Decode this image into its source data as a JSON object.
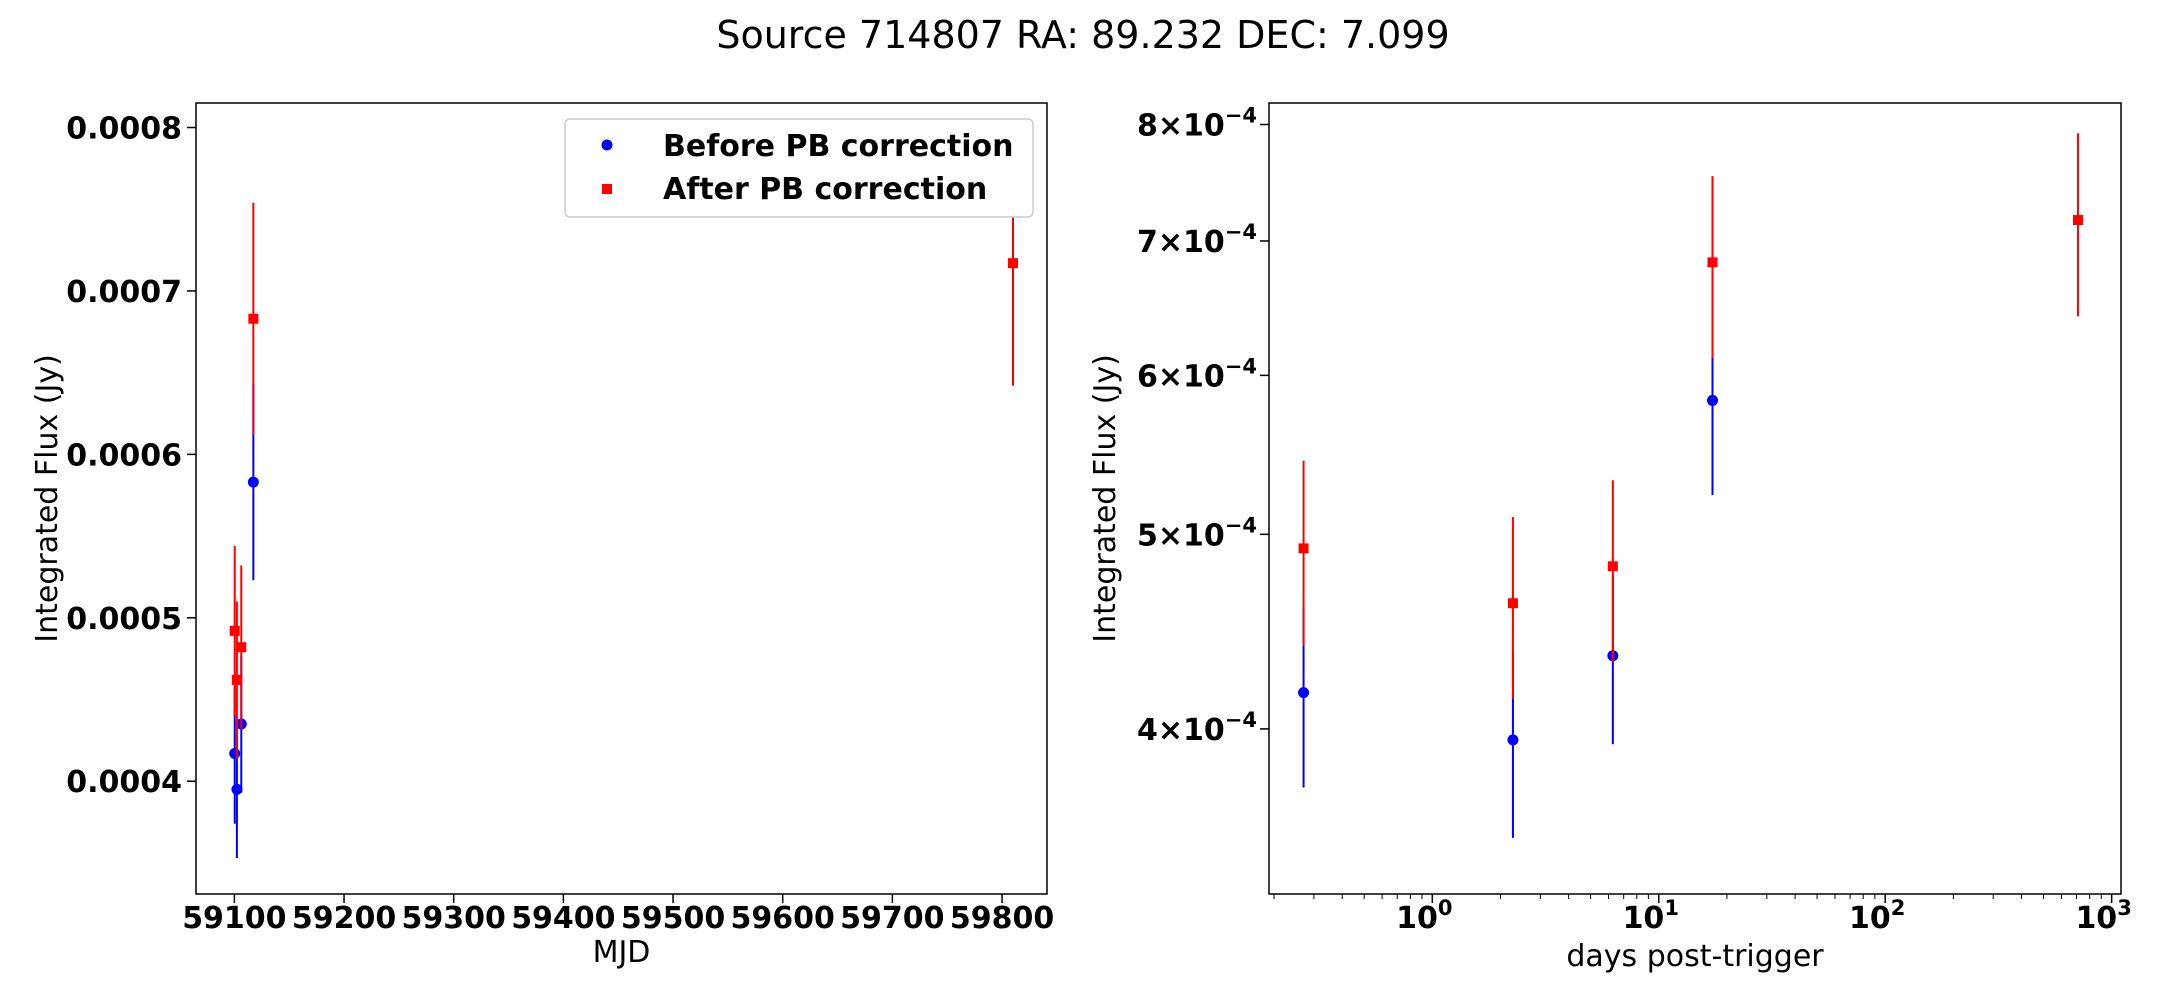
{
  "figure": {
    "title": "Source 714807 RA: 89.232 DEC: 7.099"
  },
  "chart_data": [
    {
      "type": "scatter",
      "panel": "left",
      "xlabel": "MJD",
      "ylabel": "Integrated Flux (Jy)",
      "xscale": "linear",
      "yscale": "linear",
      "xlim": [
        59065,
        59841
      ],
      "ylim": [
        0.000331,
        0.000815
      ],
      "xticks": [
        59100,
        59200,
        59300,
        59400,
        59500,
        59600,
        59700,
        59800
      ],
      "xtick_labels": [
        "59100",
        "59200",
        "59300",
        "59400",
        "59500",
        "59600",
        "59700",
        "59800"
      ],
      "yticks": [
        0.0004,
        0.0005,
        0.0006,
        0.0007,
        0.0008
      ],
      "ytick_labels": [
        "0.0004",
        "0.0005",
        "0.0006",
        "0.0007",
        "0.0008"
      ],
      "grid": false,
      "legend": {
        "placement": "upper-right",
        "entries": [
          {
            "label": "Before PB correction",
            "color": "#0000ff",
            "marker": "circle"
          },
          {
            "label": "After PB correction",
            "color": "#ff0000",
            "marker": "square"
          }
        ]
      },
      "series": [
        {
          "name": "Before PB correction",
          "color": "#0000ff",
          "marker": "circle",
          "points": [
            {
              "x": 59100.3,
              "y": 0.000417,
              "err": 4.3e-05
            },
            {
              "x": 59102.3,
              "y": 0.000395,
              "err": 4.2e-05
            },
            {
              "x": 59106.3,
              "y": 0.000435,
              "err": 4.2e-05
            },
            {
              "x": 59117.3,
              "y": 0.000583,
              "err": 6e-05
            }
          ]
        },
        {
          "name": "After PB correction",
          "color": "#ff0000",
          "marker": "square",
          "points": [
            {
              "x": 59100.3,
              "y": 0.000492,
              "err": 5.2e-05
            },
            {
              "x": 59102.3,
              "y": 0.000462,
              "err": 4.8e-05
            },
            {
              "x": 59106.3,
              "y": 0.000482,
              "err": 5e-05
            },
            {
              "x": 59117.3,
              "y": 0.000683,
              "err": 7.1e-05
            },
            {
              "x": 59810,
              "y": 0.000717,
              "err": 7.5e-05
            }
          ]
        }
      ]
    },
    {
      "type": "scatter",
      "panel": "right",
      "xlabel": "days post-trigger",
      "ylabel": "Integrated Flux (Jy)",
      "xscale": "log",
      "yscale": "log",
      "xlim": [
        0.19,
        1100
      ],
      "ylim": [
        0.000331,
        0.00082
      ],
      "xticks": [
        1,
        10,
        100,
        1000
      ],
      "xtick_mantissa": "10",
      "xtick_exponents": [
        "0",
        "1",
        "2",
        "3"
      ],
      "yticks": [
        0.0004,
        0.0005,
        0.0006,
        0.0007,
        0.0008
      ],
      "ytick_mantissas": [
        "4",
        "5",
        "6",
        "7",
        "8"
      ],
      "ytick_base": "10",
      "ytick_exponent": "−4",
      "grid": false,
      "series": [
        {
          "name": "Before PB correction",
          "color": "#0000ff",
          "marker": "circle",
          "points": [
            {
              "x": 0.27,
              "y": 0.000417,
              "err": 4.3e-05
            },
            {
              "x": 2.27,
              "y": 0.000395,
              "err": 4.2e-05
            },
            {
              "x": 6.27,
              "y": 0.000435,
              "err": 4.2e-05
            },
            {
              "x": 17.27,
              "y": 0.000583,
              "err": 6e-05
            }
          ]
        },
        {
          "name": "After PB correction",
          "color": "#ff0000",
          "marker": "square",
          "points": [
            {
              "x": 0.27,
              "y": 0.000492,
              "err": 5.2e-05
            },
            {
              "x": 2.27,
              "y": 0.000462,
              "err": 4.8e-05
            },
            {
              "x": 6.27,
              "y": 0.000482,
              "err": 5e-05
            },
            {
              "x": 17.27,
              "y": 0.000683,
              "err": 7.1e-05
            },
            {
              "x": 710,
              "y": 0.000717,
              "err": 7.5e-05
            }
          ]
        }
      ]
    }
  ]
}
